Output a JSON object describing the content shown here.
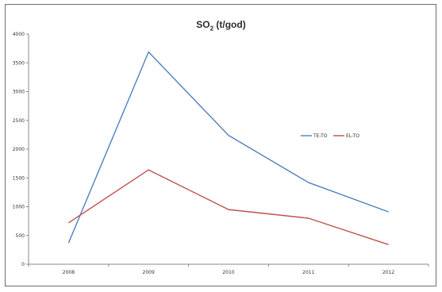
{
  "chart_data": {
    "type": "line",
    "title_main": "SO",
    "title_sub": "2",
    "title_rest": " (t/god)",
    "categories": [
      "2008",
      "2009",
      "2010",
      "2011",
      "2012"
    ],
    "yticks": [
      "0",
      "500",
      "1000",
      "1500",
      "2000",
      "2500",
      "3000",
      "3500",
      "4000"
    ],
    "ylim": [
      0,
      4000
    ],
    "grid": false,
    "legend_position": "right",
    "series": [
      {
        "name": "TE-TO",
        "color": "#4f81bd",
        "values": [
          370,
          3690,
          2240,
          1420,
          910
        ]
      },
      {
        "name": "EL-TO",
        "color": "#c0504d",
        "values": [
          720,
          1640,
          950,
          800,
          340
        ]
      }
    ]
  }
}
